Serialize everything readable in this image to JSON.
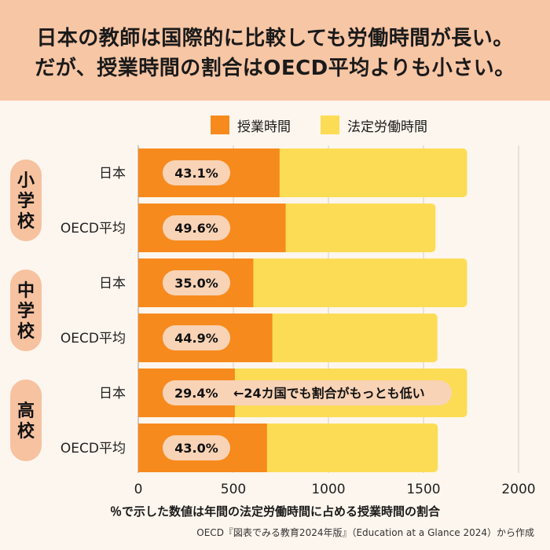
{
  "title": {
    "line1": "日本の教師は国際的に比較しても労働時間が長い。",
    "line2": "だが、授業時間の割合はOECD平均よりも小さい。"
  },
  "footnote": "％で示した数値は年間の法定労働時間に占める授業時間の割合",
  "source": "OECD『図表でみる教育2024年版』（Education at a Glance 2024）から作成",
  "colors": {
    "teaching": "#f78a1d",
    "statutory": "#fcdc55",
    "group_tag": "#f6c2a0",
    "pct_pill": "#f8d3b6",
    "grid": "#cfcfcf"
  },
  "chart_data": {
    "type": "bar",
    "orientation": "horizontal",
    "stacked": "overlay",
    "legend_position": "top",
    "grid": true,
    "xlim": [
      0,
      2000
    ],
    "x_ticks": [
      "0",
      "500",
      "1000",
      "1500",
      "2000"
    ],
    "series": [
      {
        "name": "授業時間",
        "color": "#f78a1d"
      },
      {
        "name": "法定労働時間",
        "color": "#fcdc55"
      }
    ],
    "groups": [
      {
        "label": "小学校",
        "rows": [
          {
            "label": "日本",
            "teaching": 743,
            "statutory": 1729,
            "pct": "43.1%"
          },
          {
            "label": "OECD平均",
            "teaching": 775,
            "statutory": 1563,
            "pct": "49.6%"
          }
        ]
      },
      {
        "label": "中学校",
        "rows": [
          {
            "label": "日本",
            "teaching": 605,
            "statutory": 1729,
            "pct": "35.0%"
          },
          {
            "label": "OECD平均",
            "teaching": 705,
            "statutory": 1573,
            "pct": "44.9%"
          }
        ]
      },
      {
        "label": "高校",
        "rows": [
          {
            "label": "日本",
            "teaching": 508,
            "statutory": 1729,
            "pct": "29.4%",
            "annotation": "←24カ国でも割合がもっとも低い"
          },
          {
            "label": "OECD平均",
            "teaching": 677,
            "statutory": 1575,
            "pct": "43.0%"
          }
        ]
      }
    ]
  }
}
